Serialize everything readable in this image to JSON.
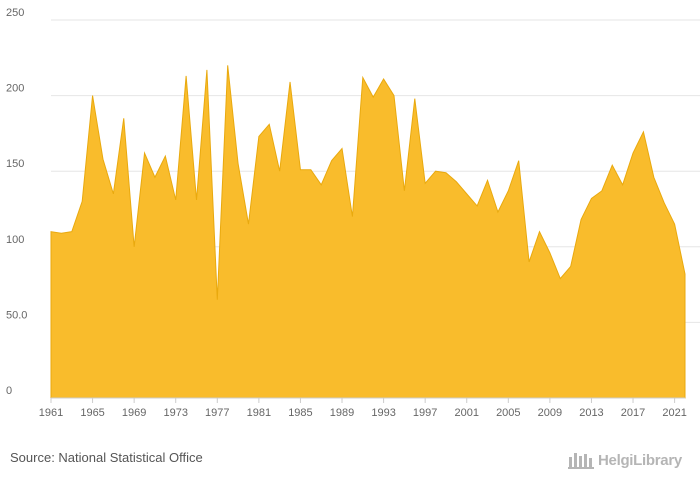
{
  "chart_data": {
    "type": "area",
    "title": "",
    "xlabel": "",
    "ylabel": "",
    "ylim": [
      0,
      250
    ],
    "yticks": [
      "0",
      "50.0",
      "100",
      "150",
      "200",
      "250"
    ],
    "xticks": [
      "1961",
      "1965",
      "1969",
      "1973",
      "1977",
      "1981",
      "1985",
      "1989",
      "1993",
      "1997",
      "2001",
      "2005",
      "2009",
      "2013",
      "2017",
      "2021"
    ],
    "grid": true,
    "color": "#f9bc2c",
    "x": [
      1961,
      1962,
      1963,
      1964,
      1965,
      1966,
      1967,
      1968,
      1969,
      1970,
      1971,
      1972,
      1973,
      1974,
      1975,
      1976,
      1977,
      1978,
      1979,
      1980,
      1981,
      1982,
      1983,
      1984,
      1985,
      1986,
      1987,
      1988,
      1989,
      1990,
      1991,
      1992,
      1993,
      1994,
      1995,
      1996,
      1997,
      1998,
      1999,
      2000,
      2001,
      2002,
      2003,
      2004,
      2005,
      2006,
      2007,
      2008,
      2009,
      2010,
      2011,
      2012,
      2013,
      2014,
      2015,
      2016,
      2017,
      2018,
      2019,
      2020,
      2021,
      2022
    ],
    "values": [
      110,
      109,
      110,
      130,
      200,
      158,
      135,
      185,
      100,
      162,
      146,
      160,
      131,
      213,
      131,
      217,
      65,
      220,
      155,
      115,
      173,
      181,
      150,
      209,
      151,
      151,
      141,
      157,
      165,
      120,
      212,
      199,
      211,
      200,
      137,
      198,
      142,
      150,
      149,
      143,
      135,
      127,
      144,
      123,
      137,
      157,
      90,
      110,
      96,
      79,
      87,
      118,
      132,
      137,
      154,
      141,
      162,
      176,
      146,
      129,
      115,
      82
    ]
  },
  "footer": {
    "source": "Source: National Statistical Office",
    "logo_text": "HelgiLibrary"
  }
}
